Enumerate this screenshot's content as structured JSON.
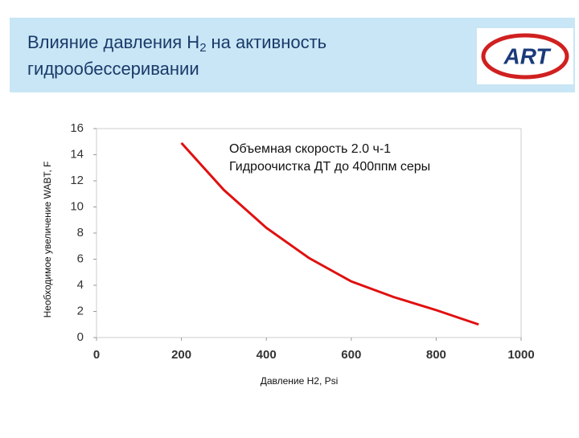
{
  "header": {
    "title": {
      "line1": [
        "Влияние давления H",
        "2",
        "на активность"
      ],
      "line2": "гидрообессеривании"
    },
    "logo": "ART"
  },
  "chart_data": {
    "type": "line",
    "x": [
      200,
      300,
      400,
      500,
      600,
      700,
      800,
      900
    ],
    "series": [
      {
        "color": "#e01010",
        "values": [
          14.9,
          11.3,
          8.4,
          6.1,
          4.3,
          3.1,
          2.1,
          1.0
        ]
      }
    ],
    "xlim": [
      0,
      1000
    ],
    "xticks": [
      0,
      200,
      400,
      600,
      800,
      1000
    ],
    "ylim": [
      0,
      16
    ],
    "yticks": [
      0,
      2,
      4,
      6,
      8,
      10,
      12,
      14,
      16
    ],
    "xlabel": "Давление H2, Psi",
    "ylabel": "Необходимое увеличение WABT, F",
    "annotations": [
      "Объемная скорость 2.0 ч-1",
      "Гидроочистка ДТ до 400ппм серы"
    ],
    "grid": false
  }
}
